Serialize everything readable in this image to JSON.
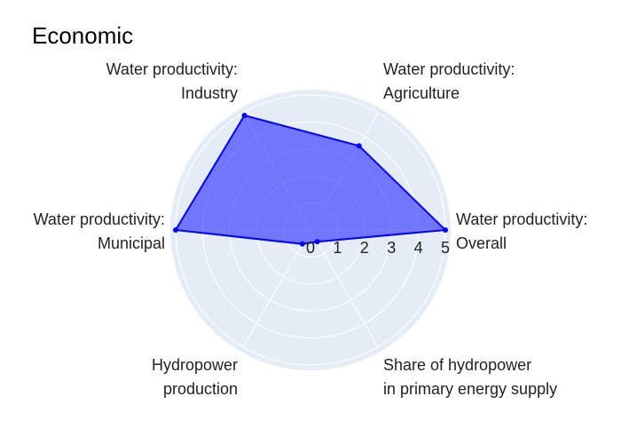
{
  "chart_data": {
    "type": "radar",
    "title": "Economic",
    "categories": [
      [
        "Water productivity:",
        "Overall"
      ],
      [
        "Water productivity:",
        "Agriculture"
      ],
      [
        "Water productivity:",
        "Industry"
      ],
      [
        "Water productivity:",
        "Municipal"
      ],
      [
        "Hydropower",
        "production"
      ],
      [
        "Share of hydropower",
        "in primary energy supply"
      ]
    ],
    "values": [
      5,
      3.6,
      4.9,
      5,
      0.6,
      0.5
    ],
    "radial_range": [
      0,
      5
    ],
    "radial_ticks": [
      0,
      1,
      2,
      3,
      4,
      5
    ],
    "grid": true,
    "colors": {
      "fill": "#0000ff",
      "line": "#0000ff",
      "polar_bg": "#e5ecf6",
      "grid": "#ffffff"
    }
  }
}
